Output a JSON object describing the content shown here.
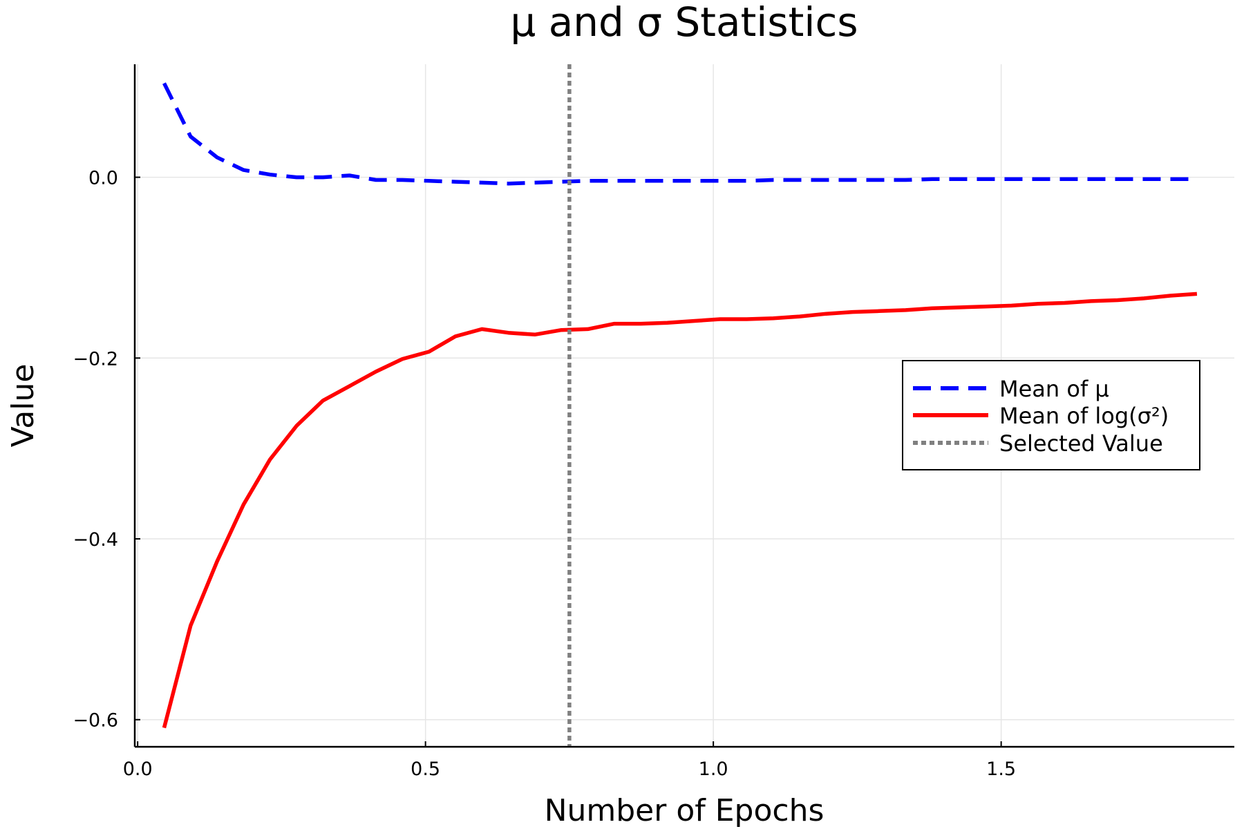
{
  "chart_data": {
    "type": "line",
    "title": "μ and σ Statistics",
    "xlabel": "Number of Epochs",
    "ylabel": "Value",
    "xlim": [
      -0.005,
      1.905
    ],
    "ylim": [
      -0.63,
      0.125
    ],
    "xticks": [
      0.0,
      0.5,
      1.0,
      1.5
    ],
    "xtick_labels": [
      "0.0",
      "0.5",
      "1.0",
      "1.5"
    ],
    "yticks": [
      0.0,
      -0.2,
      -0.4,
      -0.6
    ],
    "ytick_labels": [
      "0.0",
      "−0.2",
      "−0.4",
      "−0.6"
    ],
    "grid": true,
    "legend_position": "right",
    "series": [
      {
        "name": "Mean of μ",
        "style": "dashed",
        "color": "#0000ff",
        "x": [
          0.046,
          0.092,
          0.138,
          0.184,
          0.23,
          0.276,
          0.322,
          0.368,
          0.414,
          0.46,
          0.506,
          0.552,
          0.598,
          0.644,
          0.69,
          0.736,
          0.782,
          0.828,
          0.874,
          0.92,
          0.966,
          1.012,
          1.058,
          1.104,
          1.15,
          1.196,
          1.242,
          1.288,
          1.334,
          1.38,
          1.426,
          1.472,
          1.518,
          1.564,
          1.61,
          1.656,
          1.702,
          1.748,
          1.794,
          1.84
        ],
        "y": [
          0.104,
          0.045,
          0.022,
          0.008,
          0.003,
          0.0,
          0.0,
          0.002,
          -0.003,
          -0.003,
          -0.004,
          -0.005,
          -0.006,
          -0.007,
          -0.006,
          -0.005,
          -0.004,
          -0.004,
          -0.004,
          -0.004,
          -0.004,
          -0.004,
          -0.004,
          -0.003,
          -0.003,
          -0.003,
          -0.003,
          -0.003,
          -0.003,
          -0.002,
          -0.002,
          -0.002,
          -0.002,
          -0.002,
          -0.002,
          -0.002,
          -0.002,
          -0.002,
          -0.002,
          -0.002
        ]
      },
      {
        "name": "Mean of log(σ²)",
        "style": "solid",
        "color": "#ff0000",
        "x": [
          0.046,
          0.092,
          0.138,
          0.184,
          0.23,
          0.276,
          0.322,
          0.368,
          0.414,
          0.46,
          0.506,
          0.552,
          0.598,
          0.644,
          0.69,
          0.736,
          0.782,
          0.828,
          0.874,
          0.92,
          0.966,
          1.012,
          1.058,
          1.104,
          1.15,
          1.196,
          1.242,
          1.288,
          1.334,
          1.38,
          1.426,
          1.472,
          1.518,
          1.564,
          1.61,
          1.656,
          1.702,
          1.748,
          1.794,
          1.84
        ],
        "y": [
          -0.609,
          -0.496,
          -0.425,
          -0.362,
          -0.312,
          -0.275,
          -0.247,
          -0.231,
          -0.215,
          -0.201,
          -0.193,
          -0.176,
          -0.168,
          -0.172,
          -0.174,
          -0.169,
          -0.168,
          -0.162,
          -0.162,
          -0.161,
          -0.159,
          -0.157,
          -0.157,
          -0.156,
          -0.154,
          -0.151,
          -0.149,
          -0.148,
          -0.147,
          -0.145,
          -0.144,
          -0.143,
          -0.142,
          -0.14,
          -0.139,
          -0.137,
          -0.136,
          -0.134,
          -0.131,
          -0.129
        ]
      },
      {
        "name": "Selected Value",
        "style": "dotted",
        "color": "#808080",
        "vertical_line_x": 0.75
      }
    ]
  }
}
